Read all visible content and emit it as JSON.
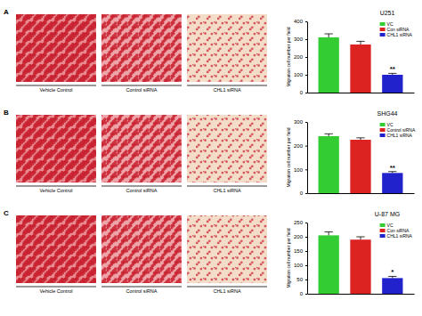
{
  "chart_data": [
    {
      "type": "bar",
      "title": "U251",
      "y_label": "Migration cell number per field",
      "categories": [
        "VC",
        "Con siRNA",
        "CHL1 siRNA"
      ],
      "values": [
        310,
        270,
        100
      ],
      "errors": [
        20,
        18,
        8
      ],
      "colors": [
        "#33cc33",
        "#dd2222",
        "#2222cc"
      ],
      "ylim": [
        0,
        400
      ],
      "yticks": [
        0,
        100,
        200,
        300,
        400
      ],
      "legend": "top-right",
      "tick_labels": "y",
      "annotations": [
        {
          "text": "**",
          "x": 2
        }
      ]
    },
    {
      "type": "bar",
      "title": "SHG44",
      "y_label": "Migration cell number per field",
      "categories": [
        "VC",
        "Control siRNA",
        "CHL1 siRNA"
      ],
      "values": [
        240,
        225,
        85
      ],
      "errors": [
        10,
        8,
        6
      ],
      "colors": [
        "#33cc33",
        "#dd2222",
        "#2222cc"
      ],
      "ylim": [
        0,
        300
      ],
      "yticks": [
        0,
        100,
        200,
        300
      ],
      "legend": "top-right",
      "tick_labels": "y",
      "annotations": [
        {
          "text": "**",
          "x": 2
        }
      ]
    },
    {
      "type": "bar",
      "title": "U-87 MG",
      "y_label": "Migration cell number per field",
      "categories": [
        "VC",
        "Con siRNA",
        "CHL1 siRNA"
      ],
      "values": [
        205,
        190,
        55
      ],
      "errors": [
        12,
        10,
        6
      ],
      "colors": [
        "#33cc33",
        "#dd2222",
        "#2222cc"
      ],
      "ylim": [
        0,
        250
      ],
      "yticks": [
        0,
        50,
        100,
        150,
        200,
        250
      ],
      "legend": "top-right",
      "tick_labels": "y",
      "annotations": [
        {
          "text": "*",
          "x": 2
        }
      ]
    }
  ],
  "figure": {
    "panels": [
      {
        "letter": "A",
        "image_labels": [
          "Vehicle Control",
          "Control siRNA",
          "CHL1 siRNA"
        ]
      },
      {
        "letter": "B",
        "image_labels": [
          "Vehicle Control",
          "Control siRNA",
          "CHL1 siRNA"
        ]
      },
      {
        "letter": "C",
        "image_labels": [
          "Vehicle Control",
          "Control siRNA",
          "CHL1 siRNA"
        ]
      }
    ]
  }
}
